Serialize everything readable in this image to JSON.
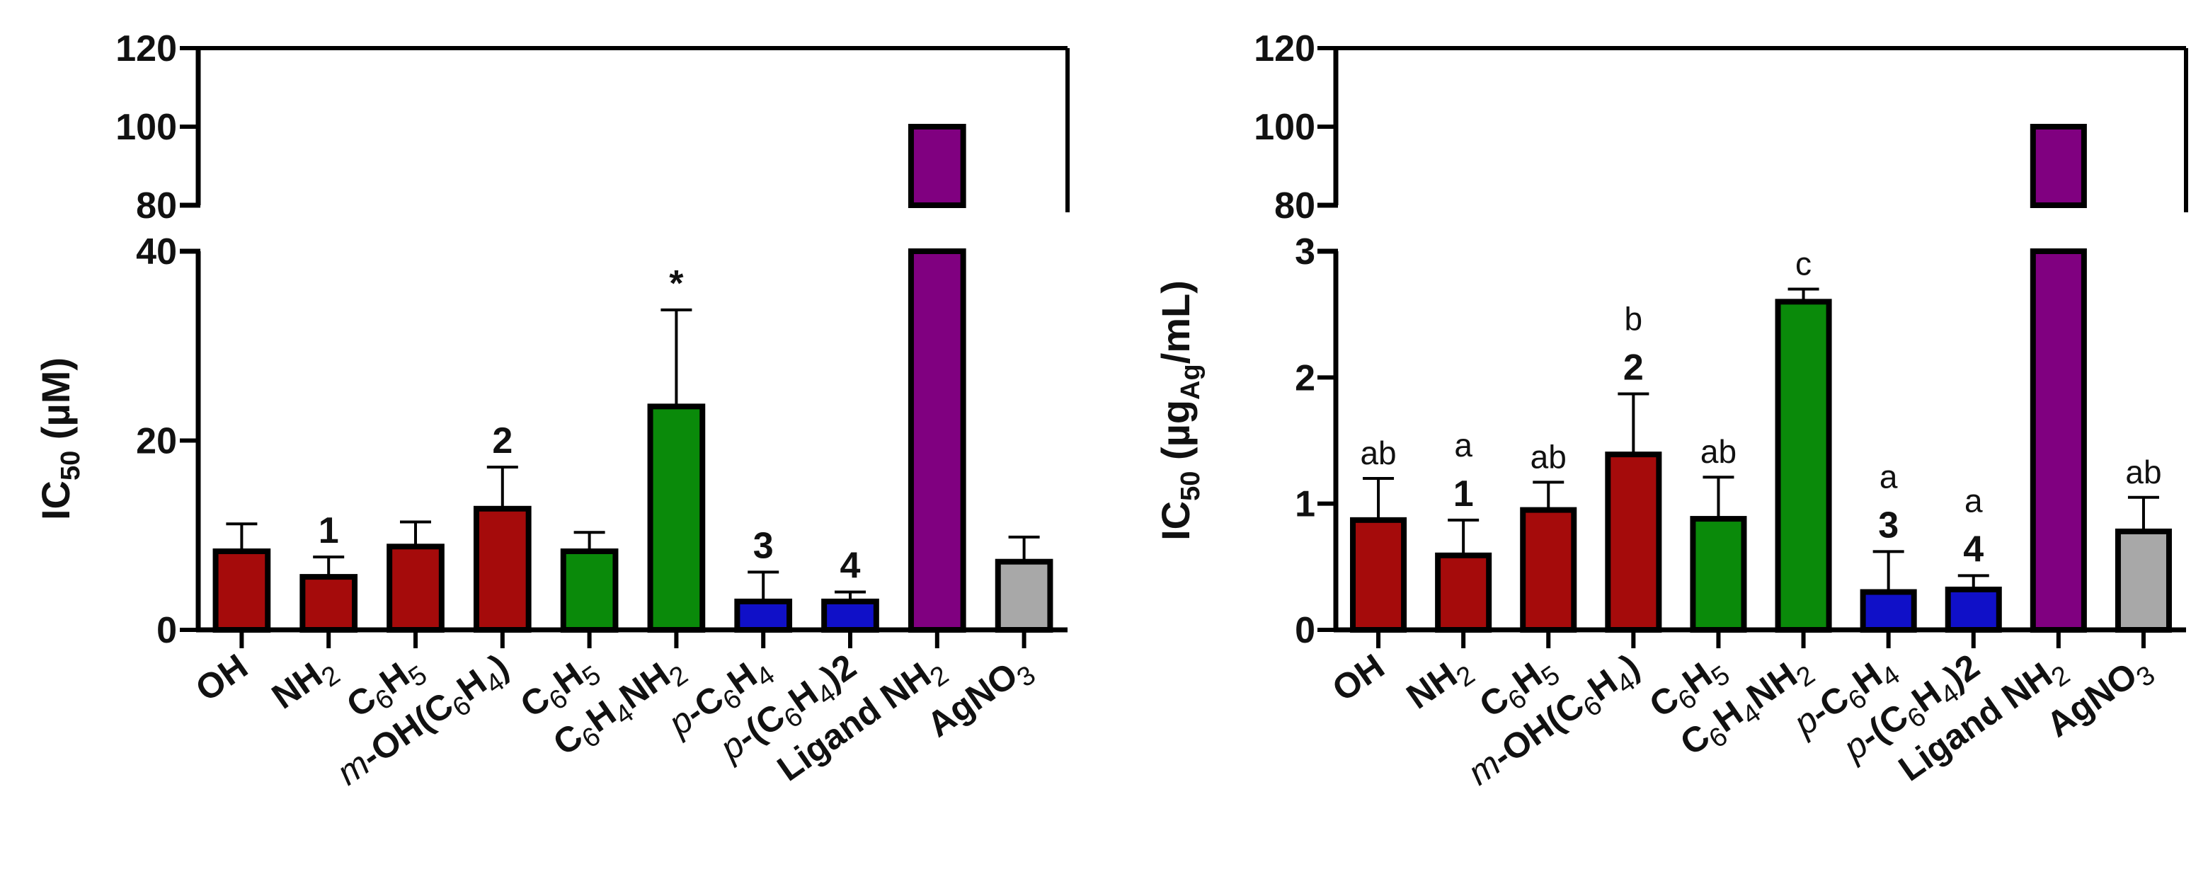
{
  "chart_data": [
    {
      "type": "bar",
      "panel": "left",
      "ylabel": "IC50 (µM)",
      "y_axis_break": {
        "lower_range": [
          0,
          40
        ],
        "upper_range": [
          80,
          120
        ]
      },
      "yticks_lower": [
        0,
        20,
        40
      ],
      "yticks_upper": [
        80,
        100,
        120
      ],
      "ytick_labels": [
        "0",
        "20",
        "40",
        "80",
        "100",
        "120"
      ],
      "categories": [
        {
          "parts": [
            "OH"
          ],
          "styles": [
            "n"
          ]
        },
        {
          "parts": [
            "NH",
            "2"
          ],
          "styles": [
            "n",
            "sub"
          ]
        },
        {
          "parts": [
            "C",
            "6",
            "H",
            "5"
          ],
          "styles": [
            "n",
            "sub",
            "n",
            "sub"
          ]
        },
        {
          "parts": [
            "m",
            "-OH(C",
            "6",
            "H",
            "4",
            ")"
          ],
          "styles": [
            "it",
            "n",
            "sub",
            "n",
            "sub",
            "n"
          ]
        },
        {
          "parts": [
            "C",
            "6",
            "H",
            "5"
          ],
          "styles": [
            "n",
            "sub",
            "n",
            "sub"
          ]
        },
        {
          "parts": [
            "C",
            "6",
            "H",
            "4",
            "NH",
            "2"
          ],
          "styles": [
            "n",
            "sub",
            "n",
            "sub",
            "n",
            "sub"
          ]
        },
        {
          "parts": [
            "p",
            "-C",
            "6",
            "H",
            "4"
          ],
          "styles": [
            "it",
            "n",
            "sub",
            "n",
            "sub"
          ]
        },
        {
          "parts": [
            "p",
            "-(C",
            "6",
            "H",
            "4",
            ")2"
          ],
          "styles": [
            "it",
            "n",
            "sub",
            "n",
            "sub",
            "n"
          ]
        },
        {
          "parts": [
            "Ligand NH",
            "2"
          ],
          "styles": [
            "n",
            "sub"
          ]
        },
        {
          "parts": [
            "AgNO",
            "3"
          ],
          "styles": [
            "n",
            "sub"
          ]
        }
      ],
      "values": [
        8.3,
        5.6,
        8.8,
        12.8,
        8.3,
        23.6,
        3.0,
        3.0,
        100,
        7.2
      ],
      "errors": [
        2.9,
        2.1,
        2.6,
        4.4,
        2.0,
        10.2,
        3.1,
        1.0,
        0,
        2.6
      ],
      "colors": [
        "#a50b0b",
        "#a50b0b",
        "#a50b0b",
        "#a50b0b",
        "#0a8a0a",
        "#0a8a0a",
        "#1010c8",
        "#1010c8",
        "#800080",
        "#a8a8a8"
      ],
      "annotations": [
        {
          "index": 1,
          "text": "1",
          "style": "num"
        },
        {
          "index": 3,
          "text": "2",
          "style": "num"
        },
        {
          "index": 5,
          "text": "*",
          "style": "num"
        },
        {
          "index": 6,
          "text": "3",
          "style": "num"
        },
        {
          "index": 7,
          "text": "4",
          "style": "num"
        }
      ]
    },
    {
      "type": "bar",
      "panel": "right",
      "ylabel": "IC50 (µgAg/mL)",
      "y_axis_break": {
        "lower_range": [
          0,
          3
        ],
        "upper_range": [
          80,
          120
        ]
      },
      "yticks_lower": [
        0,
        1,
        2,
        3
      ],
      "yticks_upper": [
        80,
        100,
        120
      ],
      "ytick_labels": [
        "0",
        "1",
        "2",
        "3",
        "80",
        "100",
        "120"
      ],
      "categories": [
        {
          "parts": [
            "OH"
          ],
          "styles": [
            "n"
          ]
        },
        {
          "parts": [
            "NH",
            "2"
          ],
          "styles": [
            "n",
            "sub"
          ]
        },
        {
          "parts": [
            "C",
            "6",
            "H",
            "5"
          ],
          "styles": [
            "n",
            "sub",
            "n",
            "sub"
          ]
        },
        {
          "parts": [
            "m",
            "-OH(C",
            "6",
            "H",
            "4",
            ")"
          ],
          "styles": [
            "it",
            "n",
            "sub",
            "n",
            "sub",
            "n"
          ]
        },
        {
          "parts": [
            "C",
            "6",
            "H",
            "5"
          ],
          "styles": [
            "n",
            "sub",
            "n",
            "sub"
          ]
        },
        {
          "parts": [
            "C",
            "6",
            "H",
            "4",
            "NH",
            "2"
          ],
          "styles": [
            "n",
            "sub",
            "n",
            "sub",
            "n",
            "sub"
          ]
        },
        {
          "parts": [
            "p",
            "-C",
            "6",
            "H",
            "4"
          ],
          "styles": [
            "it",
            "n",
            "sub",
            "n",
            "sub"
          ]
        },
        {
          "parts": [
            "p",
            "-(C",
            "6",
            "H",
            "4",
            ")2"
          ],
          "styles": [
            "it",
            "n",
            "sub",
            "n",
            "sub",
            "n"
          ]
        },
        {
          "parts": [
            "Ligand NH",
            "2"
          ],
          "styles": [
            "n",
            "sub"
          ]
        },
        {
          "parts": [
            "AgNO",
            "3"
          ],
          "styles": [
            "n",
            "sub"
          ]
        }
      ],
      "values": [
        0.87,
        0.59,
        0.95,
        1.39,
        0.88,
        2.6,
        0.3,
        0.32,
        100,
        0.78
      ],
      "errors": [
        0.33,
        0.28,
        0.22,
        0.48,
        0.33,
        0.1,
        0.32,
        0.11,
        0,
        0.27
      ],
      "colors": [
        "#a50b0b",
        "#a50b0b",
        "#a50b0b",
        "#a50b0b",
        "#0a8a0a",
        "#0a8a0a",
        "#1010c8",
        "#1010c8",
        "#800080",
        "#a8a8a8"
      ],
      "annotations": [
        {
          "index": 0,
          "text": "ab",
          "style": "let"
        },
        {
          "index": 1,
          "text": "a",
          "style": "let"
        },
        {
          "index": 1,
          "text": "1",
          "style": "num"
        },
        {
          "index": 2,
          "text": "ab",
          "style": "let"
        },
        {
          "index": 3,
          "text": "b",
          "style": "let"
        },
        {
          "index": 3,
          "text": "2",
          "style": "num"
        },
        {
          "index": 4,
          "text": "ab",
          "style": "let"
        },
        {
          "index": 5,
          "text": "c",
          "style": "let"
        },
        {
          "index": 6,
          "text": "a",
          "style": "let"
        },
        {
          "index": 6,
          "text": "3",
          "style": "num"
        },
        {
          "index": 7,
          "text": "a",
          "style": "let"
        },
        {
          "index": 7,
          "text": "4",
          "style": "num"
        },
        {
          "index": 9,
          "text": "ab",
          "style": "let"
        }
      ]
    }
  ]
}
